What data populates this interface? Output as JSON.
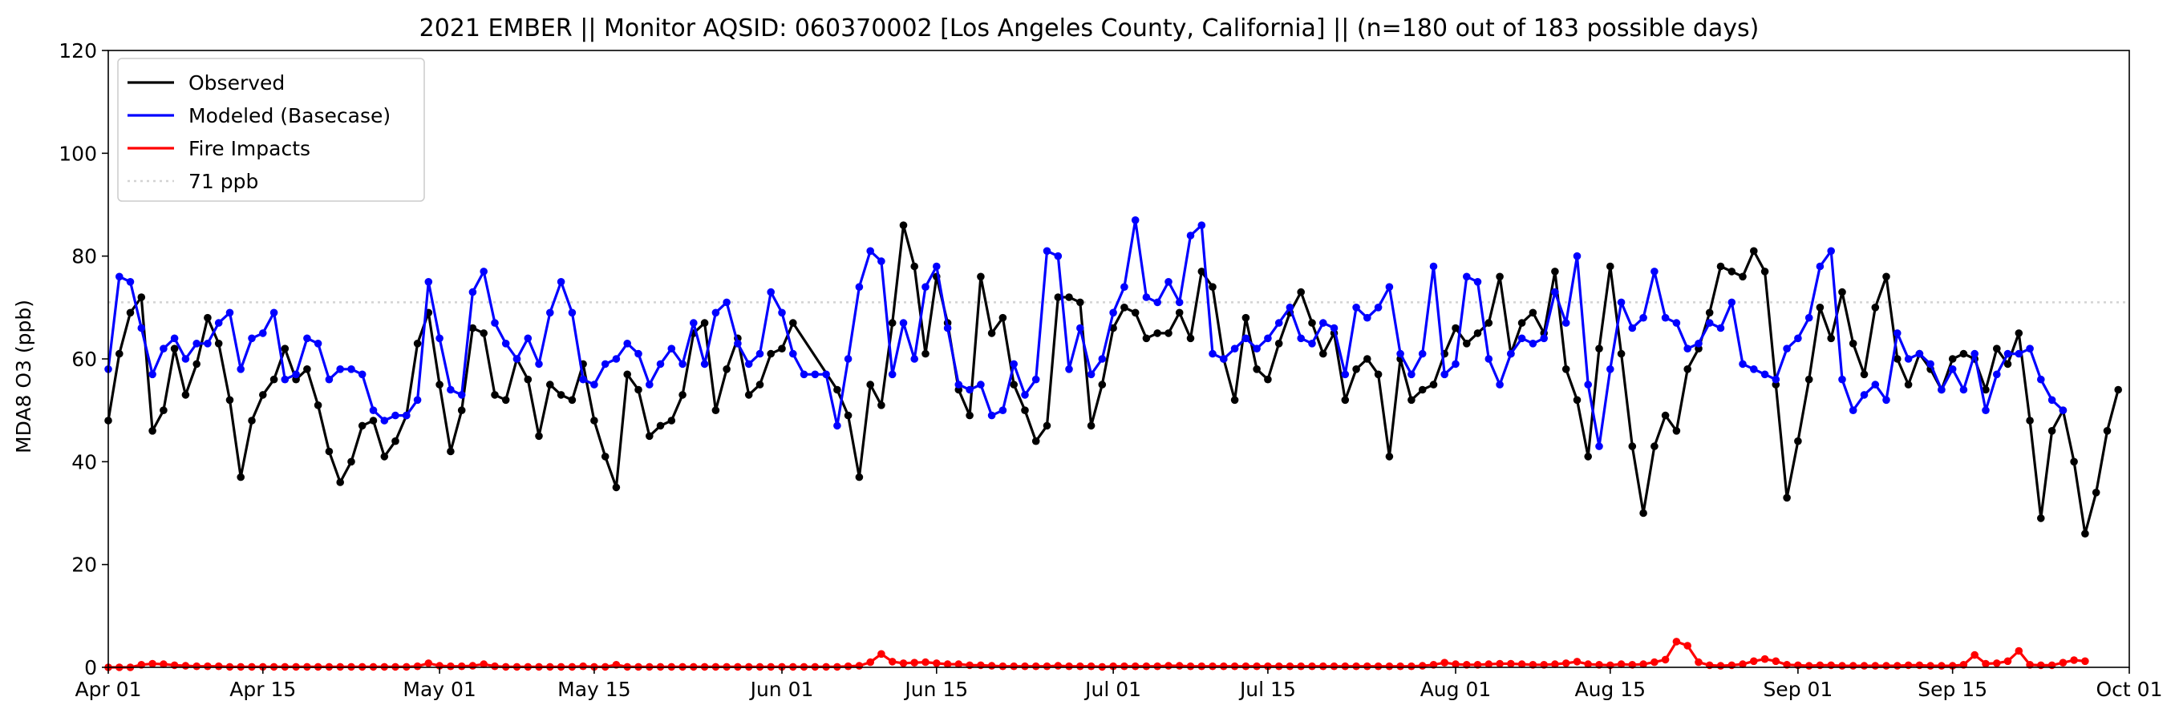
{
  "chart_data": {
    "type": "line",
    "title": "2021 EMBER || Monitor AQSID: 060370002 [Los Angeles County, California] || (n=180 out of 183 possible days)",
    "xlabel": "",
    "ylabel": "MDA8 O3 (ppb)",
    "xlim": [
      "2021-04-01",
      "2021-10-01"
    ],
    "ylim": [
      0,
      120
    ],
    "yticks": [
      0,
      20,
      40,
      60,
      80,
      100,
      120
    ],
    "xticks": [
      {
        "date": "2021-04-01",
        "label": "Apr 01"
      },
      {
        "date": "2021-04-15",
        "label": "Apr 15"
      },
      {
        "date": "2021-05-01",
        "label": "May 01"
      },
      {
        "date": "2021-05-15",
        "label": "May 15"
      },
      {
        "date": "2021-06-01",
        "label": "Jun 01"
      },
      {
        "date": "2021-06-15",
        "label": "Jun 15"
      },
      {
        "date": "2021-07-01",
        "label": "Jul 01"
      },
      {
        "date": "2021-07-15",
        "label": "Jul 15"
      },
      {
        "date": "2021-08-01",
        "label": "Aug 01"
      },
      {
        "date": "2021-08-15",
        "label": "Aug 15"
      },
      {
        "date": "2021-09-01",
        "label": "Sep 01"
      },
      {
        "date": "2021-09-15",
        "label": "Sep 15"
      },
      {
        "date": "2021-10-01",
        "label": "Oct 01"
      }
    ],
    "grid": false,
    "legend_position": "top-left",
    "reference_line": {
      "name": "71 ppb",
      "value": 71,
      "color": "#d3d3d3"
    },
    "start_date": "2021-04-01",
    "missing_days": [
      "2021-06-03",
      "2021-06-04",
      "2021-06-05"
    ],
    "series": [
      {
        "name": "Observed",
        "color": "#000000",
        "values": [
          48,
          61,
          69,
          72,
          46,
          50,
          62,
          53,
          59,
          68,
          63,
          52,
          37,
          48,
          53,
          56,
          62,
          56,
          58,
          51,
          42,
          36,
          40,
          47,
          48,
          41,
          44,
          49,
          63,
          69,
          55,
          42,
          50,
          66,
          65,
          53,
          52,
          60,
          56,
          45,
          55,
          53,
          52,
          59,
          48,
          41,
          35,
          57,
          54,
          45,
          47,
          48,
          53,
          65,
          67,
          50,
          58,
          64,
          53,
          55,
          61,
          62,
          67,
          54,
          49,
          37,
          55,
          51,
          67,
          86,
          78,
          61,
          76,
          67,
          54,
          49,
          76,
          65,
          68,
          55,
          50,
          44,
          47,
          72,
          72,
          71,
          47,
          55,
          66,
          70,
          69,
          64,
          65,
          65,
          69,
          64,
          77,
          74,
          60,
          52,
          68,
          58,
          56,
          63,
          69,
          73,
          67,
          61,
          65,
          52,
          58,
          60,
          57,
          41,
          60,
          52,
          54,
          55,
          61,
          66,
          63,
          65,
          67,
          76,
          61,
          67,
          69,
          65,
          77,
          58,
          52,
          41,
          62,
          78,
          61,
          43,
          30,
          43,
          49,
          46,
          58,
          62,
          69,
          78,
          77,
          76,
          81,
          77,
          55,
          33,
          44,
          56,
          70,
          64,
          73,
          63,
          57,
          70,
          76,
          60,
          55,
          61,
          58,
          54,
          60,
          61,
          60,
          54,
          62,
          59,
          65,
          48,
          29,
          46,
          50,
          40,
          26,
          34,
          46,
          54
        ],
        "skip_indices": [
          63,
          64,
          65
        ]
      },
      {
        "name": "Modeled (Basecase)",
        "color": "#0000ff",
        "values": [
          58,
          76,
          75,
          66,
          57,
          62,
          64,
          60,
          63,
          63,
          67,
          69,
          58,
          64,
          65,
          69,
          56,
          57,
          64,
          63,
          56,
          58,
          58,
          57,
          50,
          48,
          49,
          49,
          52,
          75,
          64,
          54,
          53,
          73,
          77,
          67,
          63,
          60,
          64,
          59,
          69,
          75,
          69,
          56,
          55,
          59,
          60,
          63,
          61,
          55,
          59,
          62,
          59,
          67,
          59,
          69,
          71,
          63,
          59,
          61,
          73,
          69,
          61,
          57,
          57,
          57,
          47,
          60,
          74,
          81,
          79,
          57,
          67,
          60,
          74,
          78,
          66,
          55,
          54,
          55,
          49,
          50,
          59,
          53,
          56,
          81,
          80,
          58,
          66,
          57,
          60,
          69,
          74,
          87,
          72,
          71,
          75,
          71,
          84,
          86,
          61,
          60,
          62,
          64,
          62,
          64,
          67,
          70,
          64,
          63,
          67,
          66,
          57,
          70,
          68,
          70,
          74,
          61,
          57,
          61,
          78,
          57,
          59,
          76,
          75,
          60,
          55,
          61,
          64,
          63,
          64,
          73,
          67,
          80,
          55,
          43,
          58,
          71,
          66,
          68,
          77,
          68,
          67,
          62,
          63,
          67,
          66,
          71,
          59,
          58,
          57,
          56,
          62,
          64,
          68,
          78,
          81,
          56,
          50,
          53,
          55,
          52,
          65,
          60,
          61,
          59,
          54,
          58,
          54,
          61,
          50,
          57,
          61,
          61,
          62,
          56,
          52,
          50
        ],
        "skip_indices": []
      },
      {
        "name": "Fire Impacts",
        "color": "#ff0000",
        "values": [
          0,
          0,
          0,
          0.5,
          0.7,
          0.6,
          0.4,
          0.3,
          0.2,
          0.2,
          0.2,
          0.1,
          0.1,
          0.1,
          0.1,
          0.1,
          0.1,
          0.1,
          0.1,
          0.1,
          0.1,
          0.1,
          0.1,
          0.1,
          0.1,
          0.1,
          0.1,
          0.1,
          0.2,
          0.8,
          0.3,
          0.2,
          0.2,
          0.3,
          0.6,
          0.2,
          0.1,
          0.1,
          0.1,
          0.1,
          0.1,
          0.1,
          0.1,
          0.2,
          0.1,
          0.1,
          0.5,
          0.1,
          0.1,
          0.1,
          0.1,
          0.1,
          0.1,
          0.1,
          0.1,
          0.1,
          0.1,
          0.1,
          0.1,
          0.1,
          0.1,
          0.1,
          0.1,
          0.1,
          0.1,
          0.1,
          0.1,
          0.2,
          0.3,
          1.0,
          2.6,
          1.1,
          0.8,
          0.9,
          1.0,
          0.8,
          0.6,
          0.6,
          0.4,
          0.4,
          0.3,
          0.2,
          0.2,
          0.2,
          0.2,
          0.2,
          0.3,
          0.2,
          0.2,
          0.2,
          0.1,
          0.2,
          0.2,
          0.2,
          0.2,
          0.2,
          0.3,
          0.3,
          0.2,
          0.2,
          0.2,
          0.2,
          0.2,
          0.2,
          0.2,
          0.2,
          0.2,
          0.2,
          0.2,
          0.2,
          0.2,
          0.2,
          0.2,
          0.2,
          0.2,
          0.2,
          0.2,
          0.2,
          0.2,
          0.3,
          0.5,
          0.9,
          0.6,
          0.5,
          0.5,
          0.6,
          0.7,
          0.7,
          0.6,
          0.5,
          0.5,
          0.6,
          0.8,
          1.1,
          0.6,
          0.5,
          0.4,
          0.6,
          0.5,
          0.6,
          1.0,
          1.5,
          5.0,
          4.2,
          1.0,
          0.4,
          0.3,
          0.4,
          0.6,
          1.2,
          1.6,
          1.2,
          0.5,
          0.4,
          0.3,
          0.4,
          0.4,
          0.3,
          0.3,
          0.3,
          0.3,
          0.3,
          0.3,
          0.4,
          0.4,
          0.3,
          0.3,
          0.3,
          0.5,
          2.4,
          0.7,
          0.8,
          1.2,
          3.2,
          0.5,
          0.4,
          0.4,
          0.9,
          1.4,
          1.2
        ],
        "skip_indices": []
      }
    ]
  }
}
